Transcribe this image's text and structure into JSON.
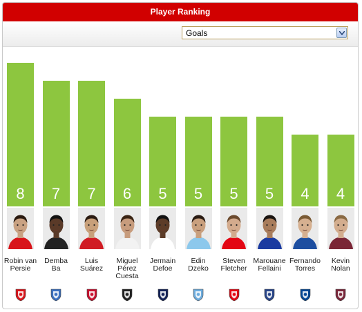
{
  "header": {
    "title": "Player Ranking"
  },
  "filter": {
    "selected": "Goals"
  },
  "chart_data": {
    "type": "bar",
    "categories": [
      "Robin van Persie",
      "Demba Ba",
      "Luis Suárez",
      "Miguel Pérez Cuesta",
      "Jermain Defoe",
      "Edin Dzeko",
      "Steven Fletcher",
      "Marouane Fellaini",
      "Fernando Torres",
      "Kevin Nolan"
    ],
    "values": [
      8,
      7,
      7,
      6,
      5,
      5,
      5,
      5,
      4,
      4
    ],
    "ylim": [
      0,
      8
    ]
  },
  "players": [
    {
      "name_line1": "Robin van",
      "name_line2": "Persie",
      "name_line3": "",
      "goals": "8",
      "shirt": "#d8141a",
      "hair": "#2a1a10",
      "skin": "#c9a283",
      "club_icon": "manchester-united-crest-icon",
      "club_color": "#d8141a"
    },
    {
      "name_line1": "Demba",
      "name_line2": "Ba",
      "name_line3": "",
      "goals": "7",
      "shirt": "#222222",
      "hair": "#111111",
      "skin": "#5a3a28",
      "club_icon": "newcastle-united-crest-icon",
      "club_color": "#3a6fbf"
    },
    {
      "name_line1": "Luis",
      "name_line2": "Suárez",
      "name_line3": "",
      "goals": "7",
      "shirt": "#d01c24",
      "hair": "#2b1b12",
      "skin": "#c8a07a",
      "club_icon": "liverpool-crest-icon",
      "club_color": "#c8102e"
    },
    {
      "name_line1": "Miguel",
      "name_line2": "Pérez",
      "name_line3": "Cuesta",
      "goals": "6",
      "shirt": "#f2f2f2",
      "hair": "#3a2414",
      "skin": "#c79c7d",
      "club_icon": "swansea-city-crest-icon",
      "club_color": "#222222"
    },
    {
      "name_line1": "Jermain",
      "name_line2": "Defoe",
      "name_line3": "",
      "goals": "5",
      "shirt": "#ffffff",
      "hair": "#111111",
      "skin": "#5c3c28",
      "club_icon": "tottenham-hotspur-crest-icon",
      "club_color": "#132257"
    },
    {
      "name_line1": "Edin",
      "name_line2": "Dzeko",
      "name_line3": "",
      "goals": "5",
      "shirt": "#8cc8ec",
      "hair": "#2a1c14",
      "skin": "#c9a07e",
      "club_icon": "manchester-city-crest-icon",
      "club_color": "#6cabdd"
    },
    {
      "name_line1": "Steven",
      "name_line2": "Fletcher",
      "name_line3": "",
      "goals": "5",
      "shirt": "#e30613",
      "hair": "#6b4a2e",
      "skin": "#d3ab8d",
      "club_icon": "sunderland-crest-icon",
      "club_color": "#e30613"
    },
    {
      "name_line1": "Marouane",
      "name_line2": "Fellaini",
      "name_line3": "",
      "goals": "5",
      "shirt": "#1a3aa0",
      "hair": "#1a1410",
      "skin": "#a97d5c",
      "club_icon": "everton-crest-icon",
      "club_color": "#274488"
    },
    {
      "name_line1": "Fernando",
      "name_line2": "Torres",
      "name_line3": "",
      "goals": "4",
      "shirt": "#1d4ea0",
      "hair": "#7a5a34",
      "skin": "#d6b090",
      "club_icon": "chelsea-crest-icon",
      "club_color": "#034694"
    },
    {
      "name_line1": "Kevin",
      "name_line2": "Nolan",
      "name_line3": "",
      "goals": "4",
      "shirt": "#7a2636",
      "hair": "#8a6a44",
      "skin": "#d3ad8e",
      "club_icon": "west-ham-crest-icon",
      "club_color": "#7a263a"
    }
  ],
  "club_labels": {
    "everton": "Everton"
  }
}
